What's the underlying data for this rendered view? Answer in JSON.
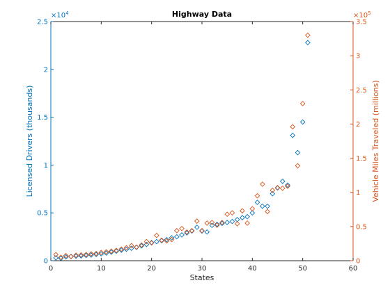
{
  "chart_data": {
    "type": "scatter",
    "title": "Highway Data",
    "xlabel": "States",
    "xlim": [
      0,
      60
    ],
    "x_ticks": [
      0,
      10,
      20,
      30,
      40,
      50,
      60
    ],
    "grid": false,
    "legend": "none",
    "axes": {
      "left": {
        "ylabel": "Licensed Drivers (thousands)",
        "ylim": [
          0,
          25000
        ],
        "tick_labels": [
          "0",
          "0.5",
          "1",
          "1.5",
          "2",
          "2.5"
        ],
        "multiplier": "×10",
        "multiplier_exp": "4",
        "color": "#0072BD"
      },
      "right": {
        "ylabel": "Vehicle Miles Traveled (millions)",
        "ylim": [
          0,
          350000
        ],
        "tick_labels": [
          "0",
          "0.5",
          "1",
          "1.5",
          "2",
          "2.5",
          "3",
          "3.5"
        ],
        "multiplier": "×10",
        "multiplier_exp": "5",
        "color": "#D95319"
      }
    },
    "series": [
      {
        "axis": "left",
        "marker": "diamond",
        "color": "#0072BD",
        "x": [
          1,
          2,
          3,
          4,
          5,
          6,
          7,
          8,
          9,
          10,
          11,
          12,
          13,
          14,
          15,
          16,
          17,
          18,
          19,
          20,
          21,
          22,
          23,
          24,
          25,
          26,
          27,
          28,
          29,
          30,
          31,
          32,
          33,
          34,
          35,
          36,
          37,
          38,
          39,
          40,
          41,
          42,
          43,
          44,
          45,
          46,
          47,
          48,
          49,
          50,
          51
        ],
        "y": [
          300,
          250,
          400,
          450,
          480,
          500,
          550,
          600,
          650,
          720,
          800,
          900,
          1000,
          1100,
          1200,
          1300,
          1400,
          1550,
          1700,
          1900,
          2000,
          2100,
          2200,
          2400,
          2500,
          2700,
          2900,
          3100,
          3500,
          3100,
          3000,
          3700,
          3800,
          3900,
          4000,
          4100,
          4300,
          4500,
          4600,
          5000,
          6100,
          5700,
          5700,
          7000,
          7600,
          8300,
          7900,
          13100,
          11300,
          14500,
          22800
        ]
      },
      {
        "axis": "right",
        "marker": "diamond",
        "color": "#D95319",
        "x": [
          1,
          2,
          3,
          4,
          5,
          6,
          7,
          8,
          9,
          10,
          11,
          12,
          13,
          14,
          15,
          16,
          17,
          18,
          19,
          20,
          21,
          22,
          23,
          24,
          25,
          26,
          27,
          28,
          29,
          30,
          31,
          32,
          33,
          34,
          35,
          36,
          37,
          38,
          39,
          40,
          41,
          42,
          43,
          44,
          45,
          46,
          47,
          48,
          49,
          50,
          51
        ],
        "y": [
          9000,
          5000,
          7500,
          6000,
          8000,
          8500,
          9000,
          10000,
          10500,
          12000,
          13000,
          14000,
          15000,
          17000,
          19000,
          22000,
          20000,
          23000,
          28000,
          26000,
          37000,
          30000,
          29000,
          31000,
          44000,
          47000,
          42000,
          44000,
          58000,
          44000,
          55000,
          56000,
          52000,
          56000,
          68000,
          70000,
          54000,
          73000,
          55000,
          76000,
          95000,
          112000,
          72000,
          103000,
          107000,
          106000,
          109000,
          196000,
          139000,
          230000,
          330000
        ]
      }
    ]
  }
}
